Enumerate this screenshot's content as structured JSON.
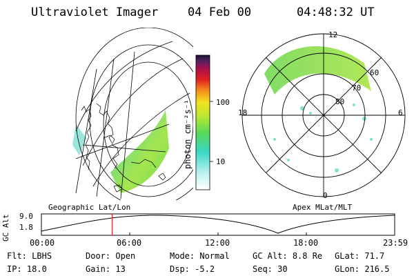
{
  "header": {
    "instrument": "Ultraviolet Imager",
    "date": "04 Feb 00",
    "time": "04:48:32 UT"
  },
  "colorbar": {
    "unit_label": "photon cm⁻²s⁻¹",
    "ticks": [
      "100",
      "10"
    ]
  },
  "panels": {
    "left_label": "Geographic Lat/Lon",
    "right_label": "Apex MLat/MLT"
  },
  "polar": {
    "mlt_labels": [
      "12",
      "18",
      "6",
      "0"
    ],
    "mlat_labels": [
      "60",
      "70",
      "80"
    ]
  },
  "altitude_plot": {
    "axis_label": "GC Alt",
    "y_ticks": [
      "9.0",
      "1.8"
    ],
    "x_ticks": [
      "00:00",
      "06:00",
      "12:00",
      "18:00",
      "23:59"
    ],
    "current_time_hours": 4.81,
    "marker_color": "#ff0000"
  },
  "info": {
    "flt_label": "Flt:",
    "flt_value": "LBHS",
    "ip_label": "IP:",
    "ip_value": "18.0",
    "door_label": "Door:",
    "door_value": "Open",
    "gain_label": "Gain:",
    "gain_value": "13",
    "mode_label": "Mode:",
    "mode_value": "Normal",
    "dsp_label": "Dsp:",
    "dsp_value": "-5.2",
    "gcalt_label": "GC Alt:",
    "gcalt_value": "8.8 Re",
    "seq_label": "Seq:",
    "seq_value": "30",
    "glat_label": "GLat:",
    "glat_value": "71.7",
    "glon_label": "GLon:",
    "glon_value": "216.5"
  }
}
